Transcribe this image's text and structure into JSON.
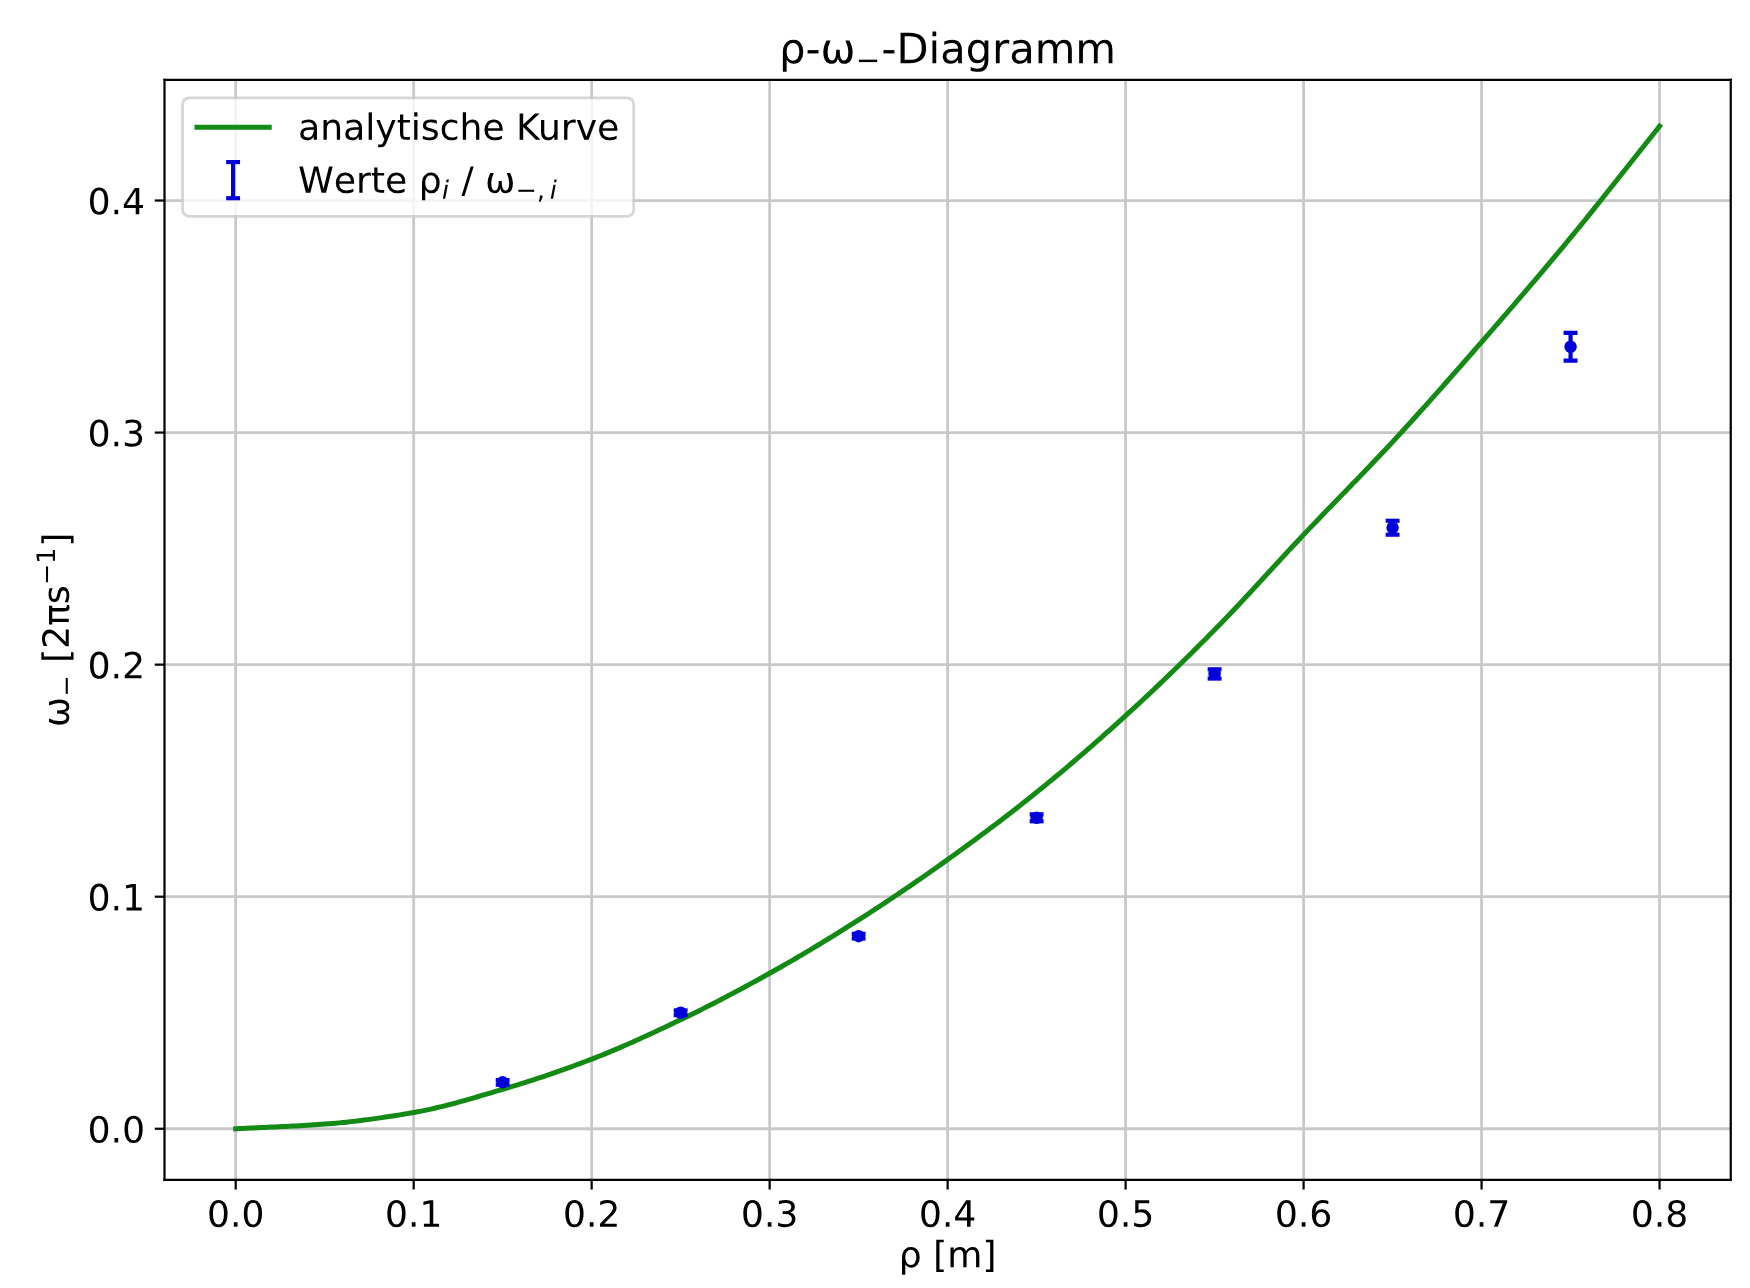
{
  "chart_data": {
    "type": "line",
    "title": "ρ-ω$_{−}$-Diagramm",
    "xlabel": "ρ [m]",
    "ylabel": "ω$_{−}$ [2πs$^{−1}$]",
    "series": [
      {
        "name": "analytische Kurve",
        "color": "#138a13",
        "x": [
          0.0,
          0.05,
          0.1,
          0.15,
          0.2,
          0.25,
          0.3,
          0.35,
          0.4,
          0.45,
          0.5,
          0.55,
          0.6,
          0.65,
          0.7,
          0.75,
          0.8
        ],
        "values": [
          0.0,
          0.002,
          0.007,
          0.017,
          0.03,
          0.047,
          0.067,
          0.09,
          0.116,
          0.145,
          0.178,
          0.215,
          0.256,
          0.296,
          0.339,
          0.384,
          0.432
        ]
      },
      {
        "name": "Werte ρ$_{i}$ / ω$_{−,i}$",
        "type": "scatter",
        "marker": "circle",
        "color": "#0000dd",
        "x": [
          0.15,
          0.25,
          0.35,
          0.45,
          0.55,
          0.65,
          0.75
        ],
        "values": [
          0.02,
          0.05,
          0.083,
          0.134,
          0.196,
          0.259,
          0.337
        ],
        "errors": [
          0.001,
          0.001,
          0.001,
          0.0015,
          0.002,
          0.003,
          0.006
        ]
      }
    ],
    "xlim": [
      -0.04,
      0.84
    ],
    "ylim": [
      -0.022,
      0.452
    ],
    "xticks": [
      {
        "value": 0,
        "label": "0.0"
      },
      0.1,
      0.2,
      0.3,
      0.4,
      0.5,
      0.6,
      0.7,
      0.8
    ],
    "yticks": [
      {
        "value": 0,
        "label": "0.0"
      },
      0.1,
      0.2,
      0.3,
      0.4
    ],
    "grid": true,
    "legend": "top left"
  }
}
